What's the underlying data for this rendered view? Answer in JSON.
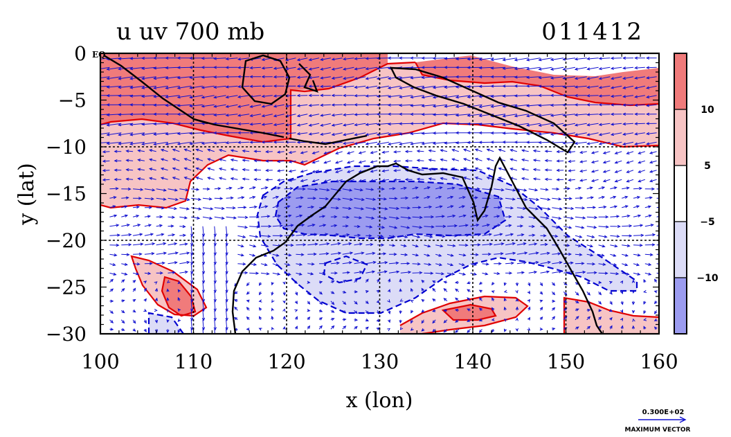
{
  "chart_data": {
    "type": "contour-vector-map",
    "title_left": "u uv 700 mb",
    "title_right": "011412",
    "xlabel": "x (lon)",
    "ylabel": "y (lat)",
    "xlim": [
      100,
      160
    ],
    "ylim": [
      -30,
      0
    ],
    "xticks": [
      "100",
      "110",
      "120",
      "130",
      "140",
      "150",
      "160"
    ],
    "yticks": [
      "0",
      "−5",
      "−10",
      "−15",
      "−20",
      "−25",
      "−30"
    ],
    "y_tick_values": [
      0,
      -5,
      -10,
      -15,
      -20,
      -25,
      -30
    ],
    "x_tick_values": [
      100,
      110,
      120,
      130,
      140,
      150,
      160
    ],
    "grid_lons": [
      110,
      120,
      130,
      140,
      150
    ],
    "grid_lats": [
      -10,
      -20
    ],
    "corner_label": "EQ",
    "colorbar": {
      "labels": [
        "10",
        "5",
        "−5",
        "−10"
      ],
      "levels": [
        10,
        5,
        -5,
        -10
      ],
      "colors": [
        "#f07b7b",
        "#f7c4c4",
        "#ffffff",
        "#dcdcf7",
        "#9c9cf0"
      ]
    },
    "vector_key": {
      "value_label": "0.300E+02",
      "caption": "MAXIMUM VECTOR"
    },
    "colors": {
      "strong_pos": "#f07b7b",
      "weak_pos": "#f7c4c4",
      "weak_neg": "#dcdcf7",
      "strong_neg": "#9c9cf0",
      "contour_pos": "#e00000",
      "contour_neg": "#0000d0",
      "vector": "#1010d0",
      "coast": "#000000"
    }
  }
}
